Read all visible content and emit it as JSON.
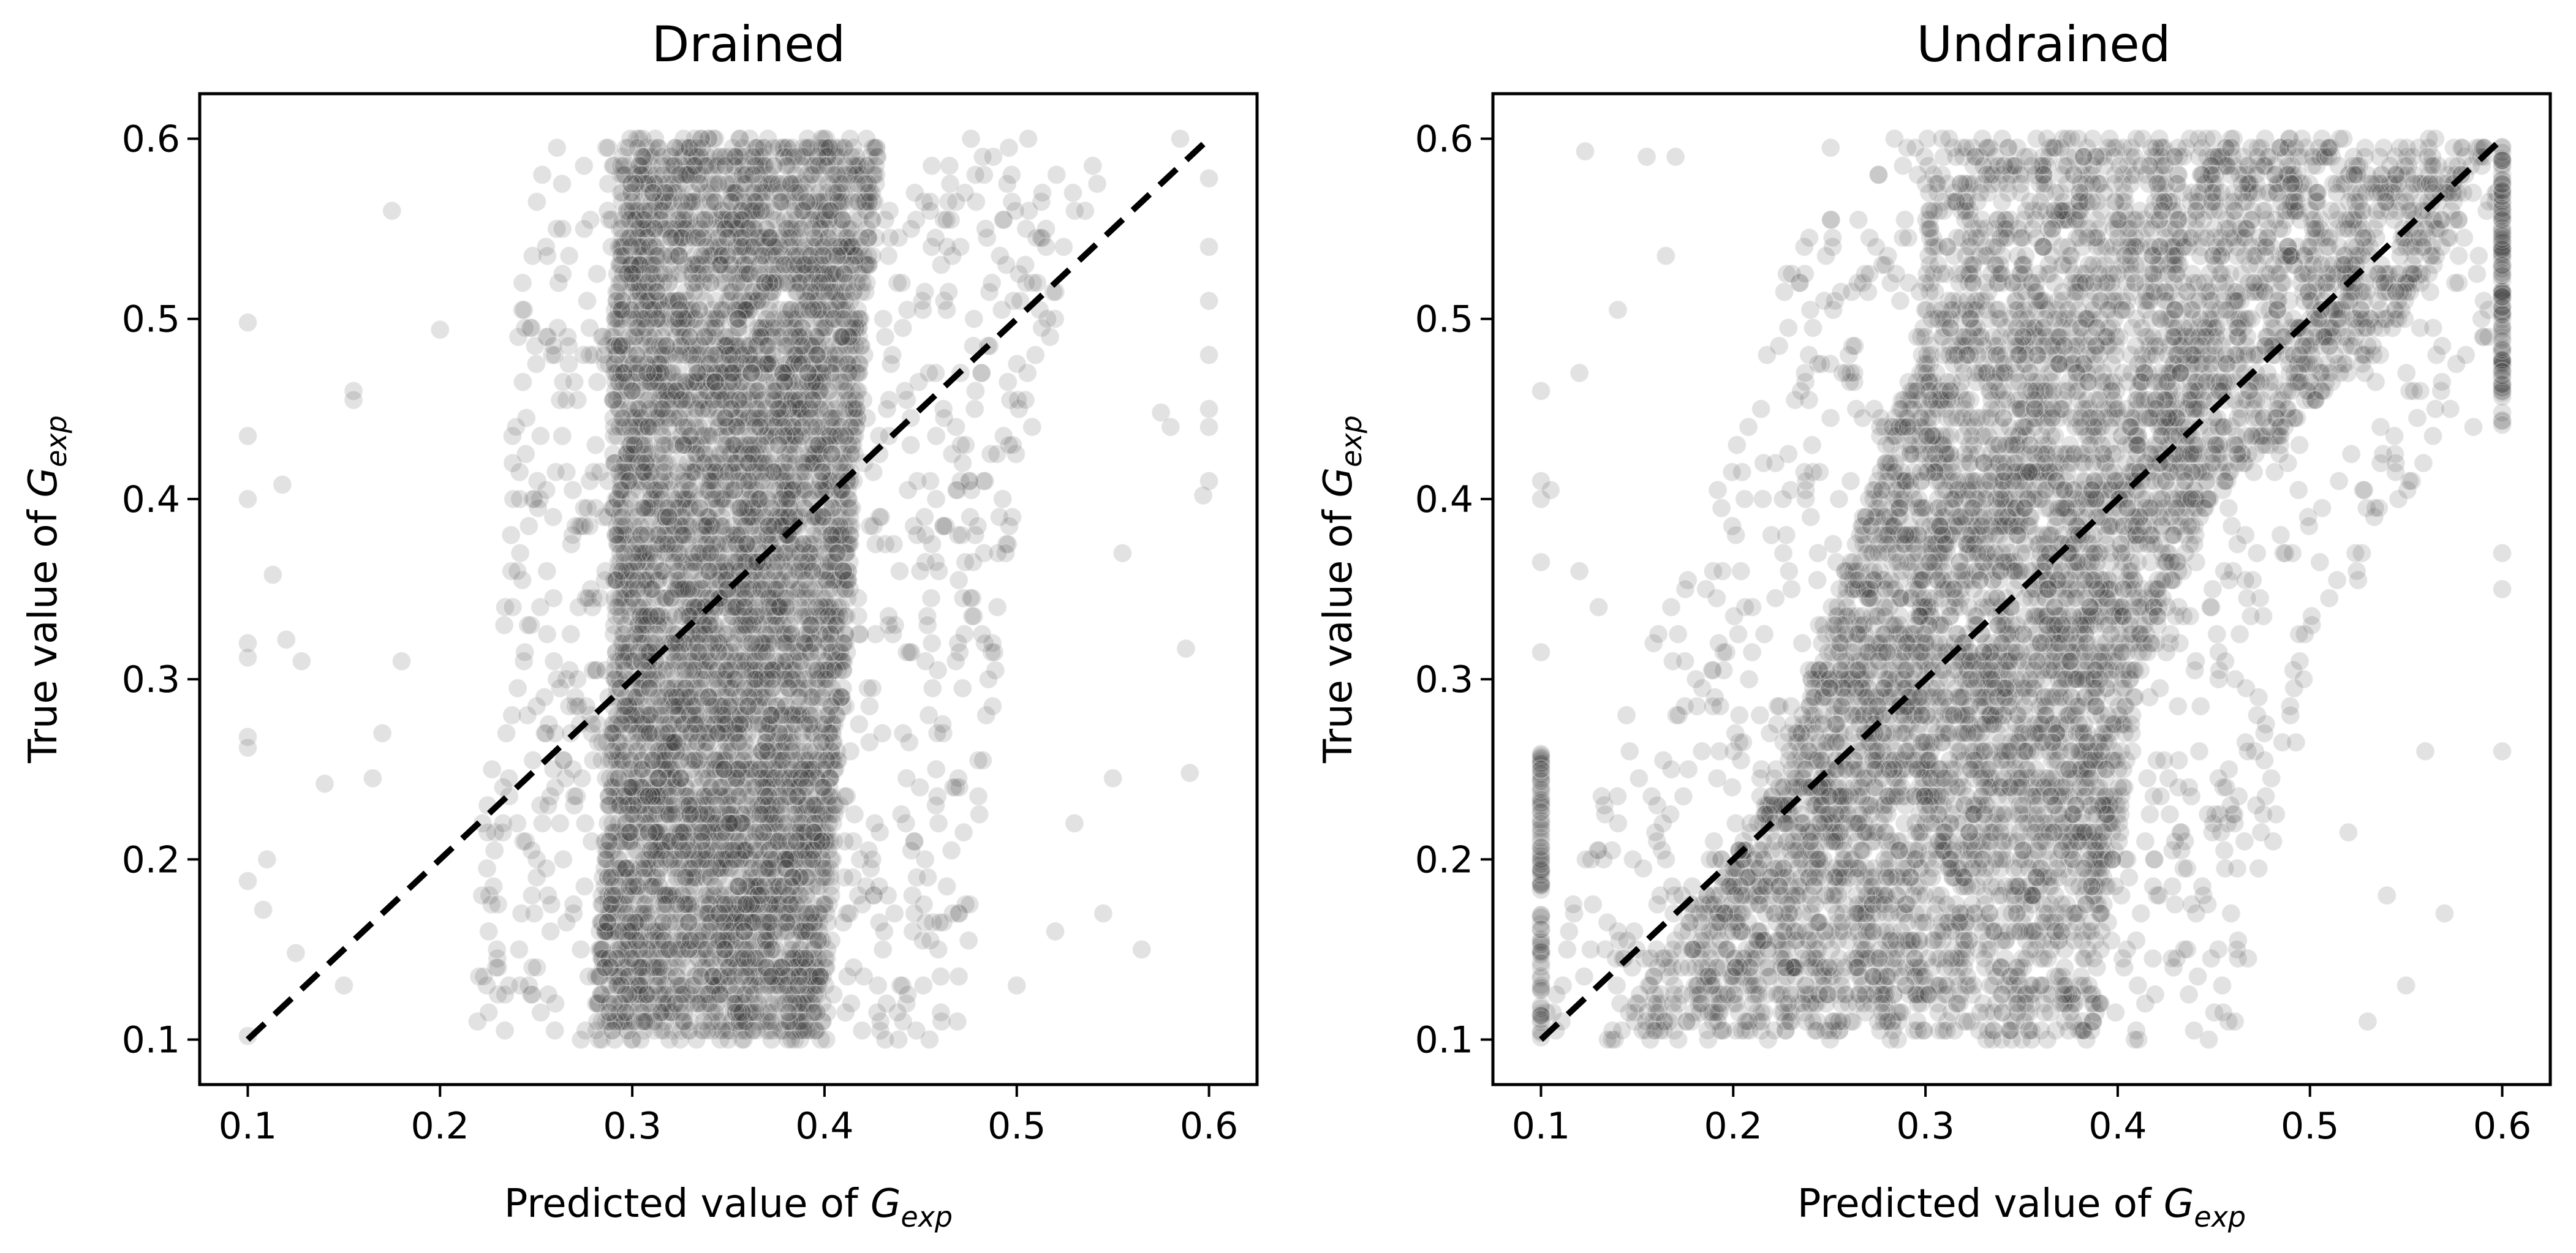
{
  "chart_data": [
    {
      "type": "scatter",
      "title": "Drained",
      "xlabel": {
        "prefix": "Predicted value of ",
        "symbol": "G",
        "subscript": "exp"
      },
      "ylabel": {
        "prefix": "True value of ",
        "symbol": "G",
        "subscript": "exp"
      },
      "xlim": [
        0.075,
        0.625
      ],
      "ylim": [
        0.075,
        0.625
      ],
      "xticks": [
        0.1,
        0.2,
        0.3,
        0.4,
        0.5,
        0.6
      ],
      "xtick_labels": [
        "0.1",
        "0.2",
        "0.3",
        "0.4",
        "0.5",
        "0.6"
      ],
      "yticks": [
        0.1,
        0.2,
        0.3,
        0.4,
        0.5,
        0.6
      ],
      "ytick_labels": [
        "0.1",
        "0.2",
        "0.3",
        "0.4",
        "0.5",
        "0.6"
      ],
      "grid": false,
      "point_color": "#3a3a3a",
      "point_opacity": 0.15,
      "reference_line": {
        "from": [
          0.1,
          0.1
        ],
        "to": [
          0.6,
          0.6
        ],
        "style": "dashed",
        "color": "#000000"
      },
      "density_profile": {
        "y": [
          0.1,
          0.2,
          0.3,
          0.4,
          0.5,
          0.6
        ],
        "x_core_low": [
          0.28,
          0.285,
          0.29,
          0.29,
          0.29,
          0.295
        ],
        "x_core_high": [
          0.4,
          0.405,
          0.41,
          0.415,
          0.42,
          0.43
        ],
        "x_spread_low": [
          0.21,
          0.22,
          0.23,
          0.235,
          0.24,
          0.25
        ],
        "x_spread_high": [
          0.47,
          0.48,
          0.49,
          0.5,
          0.52,
          0.55
        ]
      },
      "outliers": [
        [
          0.1,
          0.498
        ],
        [
          0.1,
          0.435
        ],
        [
          0.1,
          0.4
        ],
        [
          0.1,
          0.32
        ],
        [
          0.1,
          0.312
        ],
        [
          0.1,
          0.268
        ],
        [
          0.1,
          0.262
        ],
        [
          0.1,
          0.188
        ],
        [
          0.1,
          0.102
        ],
        [
          0.108,
          0.172
        ],
        [
          0.11,
          0.2
        ],
        [
          0.113,
          0.358
        ],
        [
          0.118,
          0.408
        ],
        [
          0.12,
          0.322
        ],
        [
          0.125,
          0.148
        ],
        [
          0.128,
          0.31
        ],
        [
          0.155,
          0.46
        ],
        [
          0.155,
          0.455
        ],
        [
          0.175,
          0.56
        ],
        [
          0.2,
          0.494
        ],
        [
          0.165,
          0.245
        ],
        [
          0.18,
          0.31
        ],
        [
          0.17,
          0.27
        ],
        [
          0.14,
          0.242
        ],
        [
          0.15,
          0.13
        ],
        [
          0.588,
          0.317
        ],
        [
          0.59,
          0.248
        ],
        [
          0.6,
          0.48
        ],
        [
          0.6,
          0.44
        ],
        [
          0.6,
          0.41
        ],
        [
          0.597,
          0.402
        ],
        [
          0.575,
          0.448
        ],
        [
          0.58,
          0.44
        ],
        [
          0.6,
          0.51
        ],
        [
          0.6,
          0.54
        ],
        [
          0.6,
          0.578
        ],
        [
          0.585,
          0.6
        ],
        [
          0.565,
          0.15
        ],
        [
          0.55,
          0.245
        ],
        [
          0.545,
          0.17
        ],
        [
          0.555,
          0.37
        ],
        [
          0.52,
          0.16
        ],
        [
          0.53,
          0.22
        ],
        [
          0.5,
          0.13
        ],
        [
          0.62,
          0.45
        ]
      ]
    },
    {
      "type": "scatter",
      "title": "Undrained",
      "xlabel": {
        "prefix": "Predicted value of ",
        "symbol": "G",
        "subscript": "exp"
      },
      "ylabel": {
        "prefix": "True value of ",
        "symbol": "G",
        "subscript": "exp"
      },
      "xlim": [
        0.075,
        0.625
      ],
      "ylim": [
        0.075,
        0.625
      ],
      "xticks": [
        0.1,
        0.2,
        0.3,
        0.4,
        0.5,
        0.6
      ],
      "xtick_labels": [
        "0.1",
        "0.2",
        "0.3",
        "0.4",
        "0.5",
        "0.6"
      ],
      "yticks": [
        0.1,
        0.2,
        0.3,
        0.4,
        0.5,
        0.6
      ],
      "ytick_labels": [
        "0.1",
        "0.2",
        "0.3",
        "0.4",
        "0.5",
        "0.6"
      ],
      "grid": false,
      "point_color": "#3a3a3a",
      "point_opacity": 0.15,
      "reference_line": {
        "from": [
          0.1,
          0.1
        ],
        "to": [
          0.6,
          0.6
        ],
        "style": "dashed",
        "color": "#000000"
      },
      "density_profile": {
        "y": [
          0.1,
          0.2,
          0.3,
          0.4,
          0.5,
          0.6
        ],
        "x_core_low": [
          0.13,
          0.2,
          0.24,
          0.27,
          0.3,
          0.3
        ],
        "x_core_high": [
          0.39,
          0.4,
          0.41,
          0.45,
          0.55,
          0.6
        ],
        "x_spread_low": [
          0.1,
          0.12,
          0.15,
          0.19,
          0.22,
          0.25
        ],
        "x_spread_high": [
          0.46,
          0.48,
          0.5,
          0.55,
          0.6,
          0.6
        ]
      },
      "outliers": [
        [
          0.1,
          0.46
        ],
        [
          0.1,
          0.41
        ],
        [
          0.1,
          0.4
        ],
        [
          0.1,
          0.365
        ],
        [
          0.1,
          0.315
        ],
        [
          0.105,
          0.405
        ],
        [
          0.12,
          0.47
        ],
        [
          0.123,
          0.593
        ],
        [
          0.14,
          0.505
        ],
        [
          0.155,
          0.59
        ],
        [
          0.165,
          0.535
        ],
        [
          0.17,
          0.59
        ],
        [
          0.12,
          0.36
        ],
        [
          0.13,
          0.34
        ],
        [
          0.6,
          0.26
        ],
        [
          0.6,
          0.35
        ],
        [
          0.6,
          0.37
        ],
        [
          0.59,
          0.49
        ],
        [
          0.585,
          0.44
        ],
        [
          0.56,
          0.26
        ],
        [
          0.57,
          0.17
        ],
        [
          0.55,
          0.13
        ],
        [
          0.54,
          0.18
        ],
        [
          0.52,
          0.215
        ],
        [
          0.53,
          0.11
        ]
      ],
      "edge_cluster_at_x_0.1": {
        "x": 0.1,
        "y_range": [
          0.1,
          0.26
        ]
      },
      "edge_cluster_at_x_0.6": {
        "x": 0.6,
        "y_range": [
          0.44,
          0.6
        ]
      }
    }
  ]
}
